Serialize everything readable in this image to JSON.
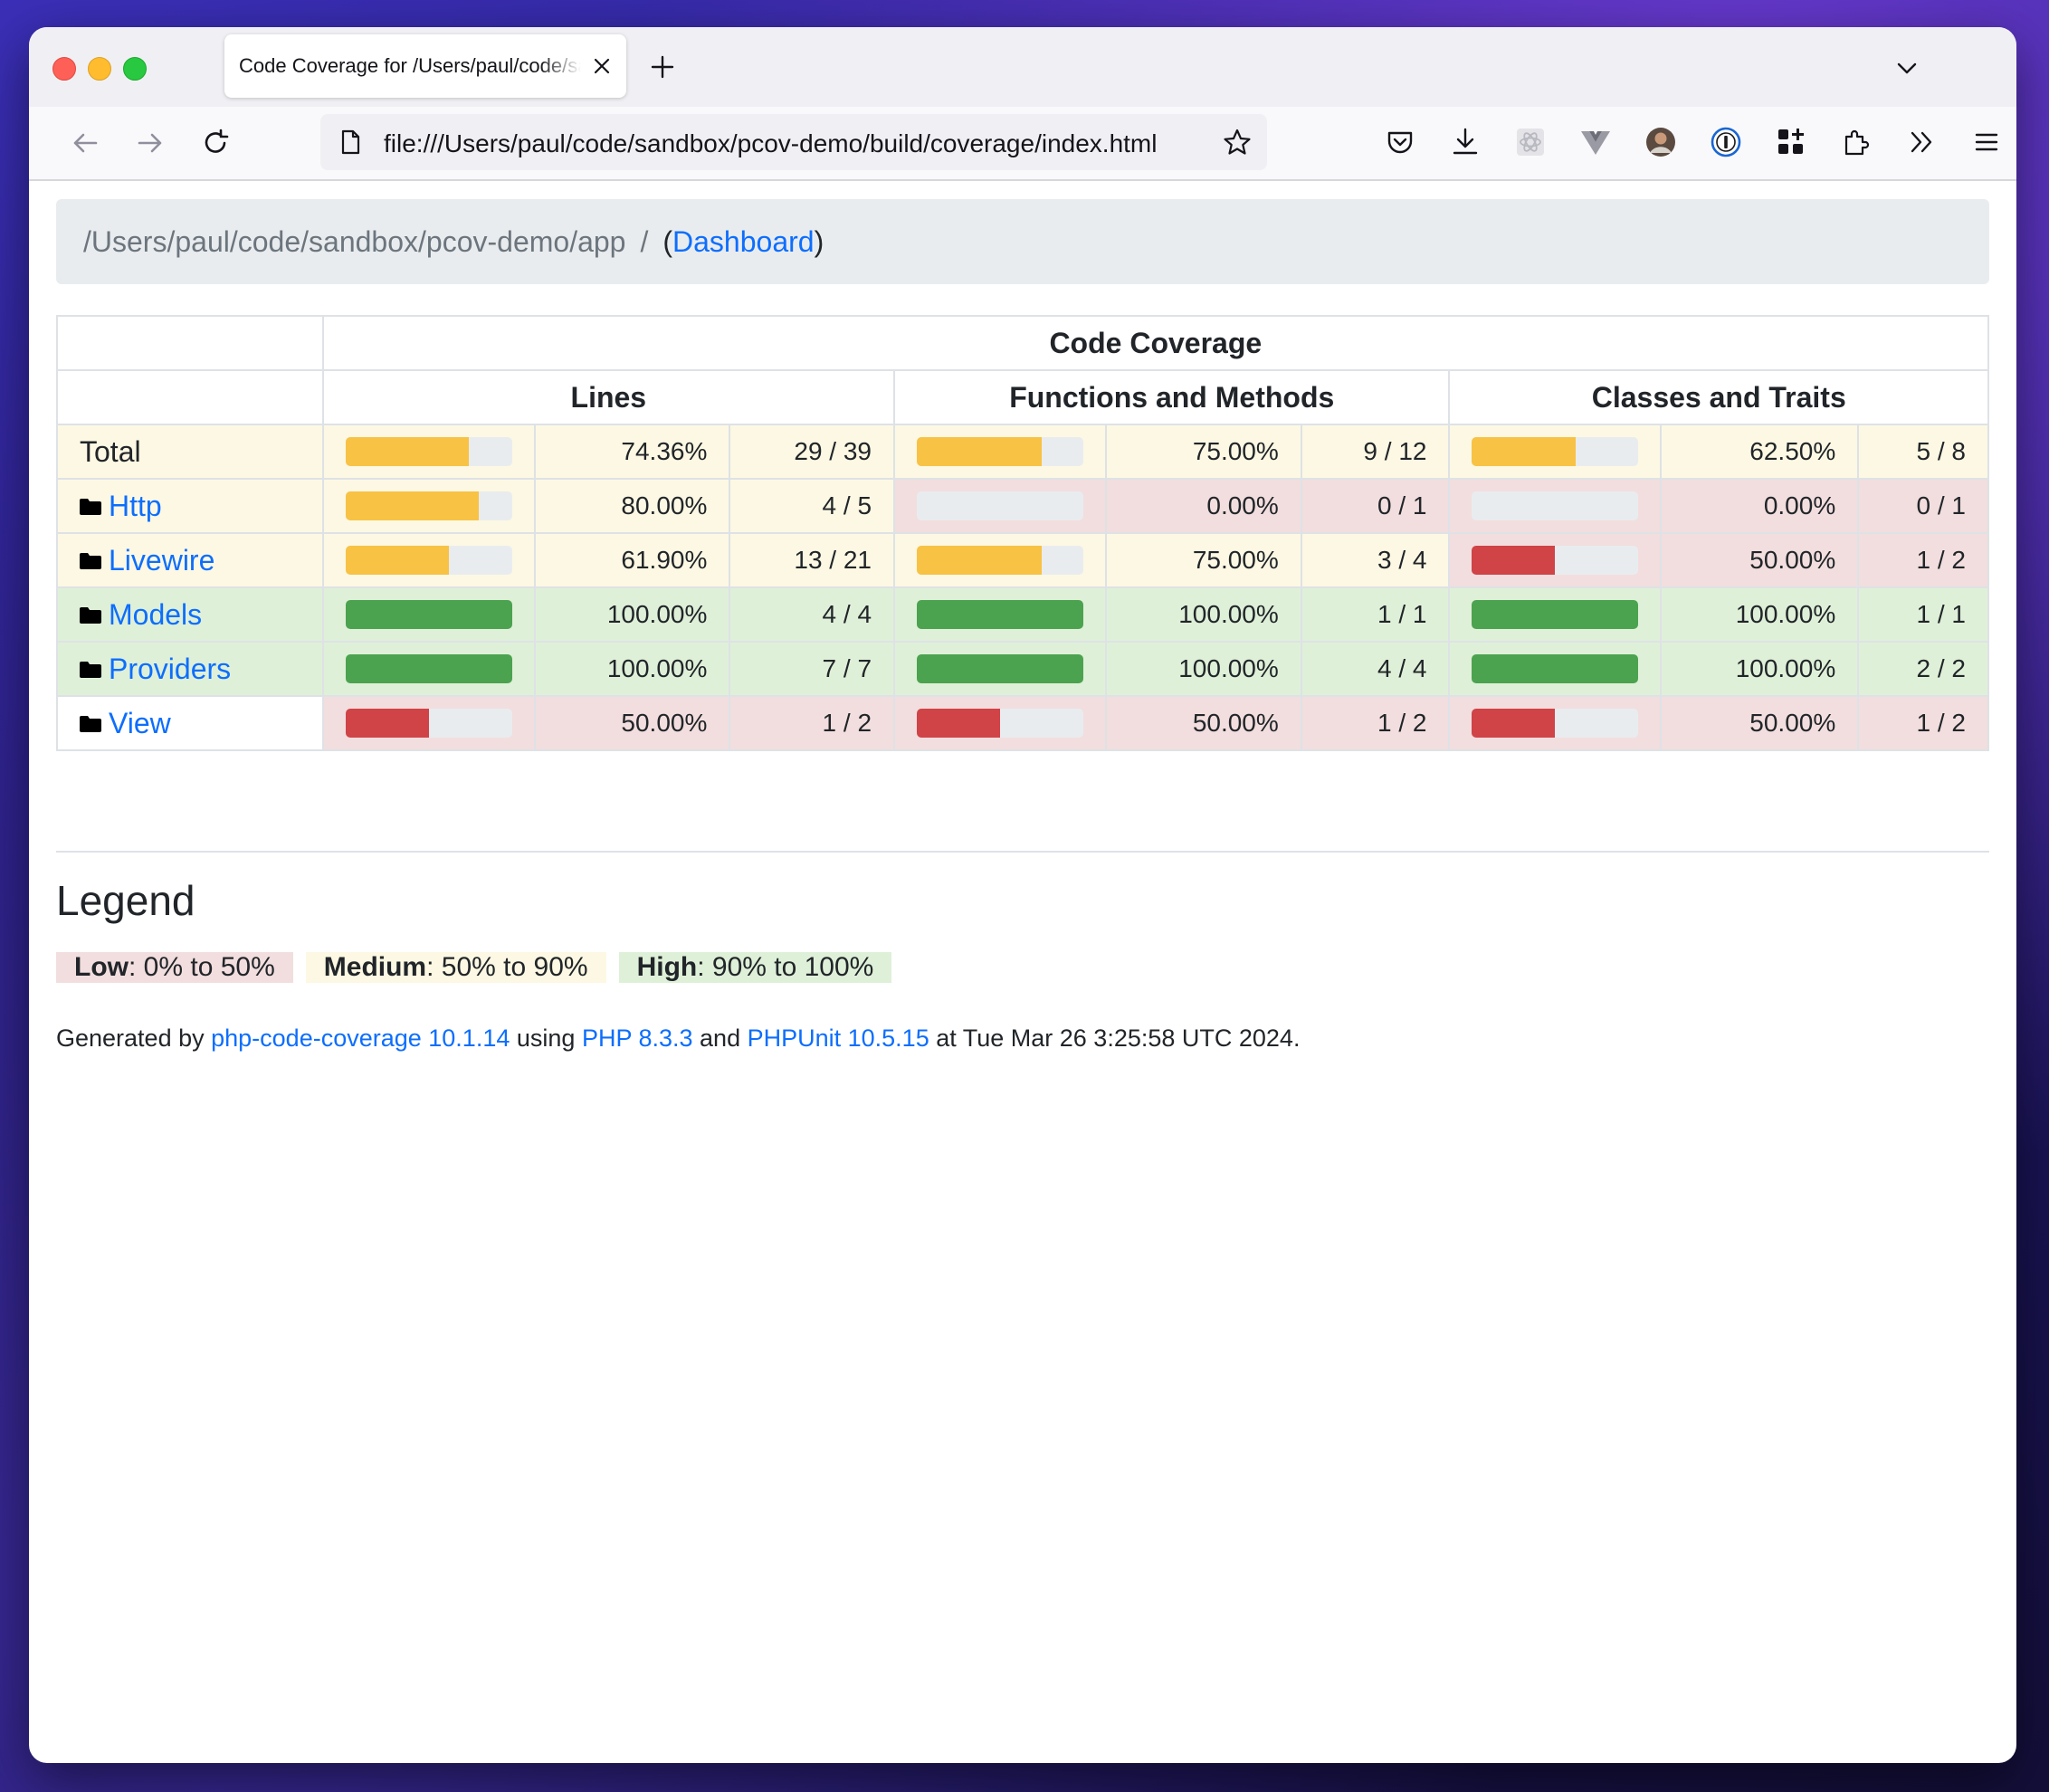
{
  "browser": {
    "tab_title": "Code Coverage for /Users/paul/code/sandbox/pcov-demo/app",
    "url": "file:///Users/paul/code/sandbox/pcov-demo/build/coverage/index.html"
  },
  "breadcrumb": {
    "path": "/Users/paul/code/sandbox/pcov-demo/app",
    "separator": "/",
    "open_paren": "(",
    "link": "Dashboard",
    "close_paren": ")"
  },
  "table": {
    "header": "Code Coverage",
    "groups": [
      "Lines",
      "Functions and Methods",
      "Classes and Traits"
    ],
    "rows": [
      {
        "name": "Total",
        "is_folder": false,
        "row_level": "warning",
        "lines": {
          "pct": "74.36%",
          "ratio": "29 / 39",
          "value": 74.36,
          "level": "warning"
        },
        "functions": {
          "pct": "75.00%",
          "ratio": "9 / 12",
          "value": 75.0,
          "level": "warning"
        },
        "classes": {
          "pct": "62.50%",
          "ratio": "5 / 8",
          "value": 62.5,
          "level": "warning"
        }
      },
      {
        "name": "Http",
        "is_folder": true,
        "row_level": "warning",
        "lines": {
          "pct": "80.00%",
          "ratio": "4 / 5",
          "value": 80.0,
          "level": "warning"
        },
        "functions": {
          "pct": "0.00%",
          "ratio": "0 / 1",
          "value": 0.0,
          "level": "danger"
        },
        "classes": {
          "pct": "0.00%",
          "ratio": "0 / 1",
          "value": 0.0,
          "level": "danger"
        }
      },
      {
        "name": "Livewire",
        "is_folder": true,
        "row_level": "warning",
        "lines": {
          "pct": "61.90%",
          "ratio": "13 / 21",
          "value": 61.9,
          "level": "warning"
        },
        "functions": {
          "pct": "75.00%",
          "ratio": "3 / 4",
          "value": 75.0,
          "level": "warning"
        },
        "classes": {
          "pct": "50.00%",
          "ratio": "1 / 2",
          "value": 50.0,
          "level": "danger"
        }
      },
      {
        "name": "Models",
        "is_folder": true,
        "row_level": "success",
        "lines": {
          "pct": "100.00%",
          "ratio": "4 / 4",
          "value": 100.0,
          "level": "success"
        },
        "functions": {
          "pct": "100.00%",
          "ratio": "1 / 1",
          "value": 100.0,
          "level": "success"
        },
        "classes": {
          "pct": "100.00%",
          "ratio": "1 / 1",
          "value": 100.0,
          "level": "success"
        }
      },
      {
        "name": "Providers",
        "is_folder": true,
        "row_level": "success",
        "lines": {
          "pct": "100.00%",
          "ratio": "7 / 7",
          "value": 100.0,
          "level": "success"
        },
        "functions": {
          "pct": "100.00%",
          "ratio": "4 / 4",
          "value": 100.0,
          "level": "success"
        },
        "classes": {
          "pct": "100.00%",
          "ratio": "2 / 2",
          "value": 100.0,
          "level": "success"
        }
      },
      {
        "name": "View",
        "is_folder": true,
        "row_level": "danger",
        "lines": {
          "pct": "50.00%",
          "ratio": "1 / 2",
          "value": 50.0,
          "level": "danger"
        },
        "functions": {
          "pct": "50.00%",
          "ratio": "1 / 2",
          "value": 50.0,
          "level": "danger"
        },
        "classes": {
          "pct": "50.00%",
          "ratio": "1 / 2",
          "value": 50.0,
          "level": "danger"
        }
      }
    ]
  },
  "legend": {
    "title": "Legend",
    "low_label": "Low",
    "low_range": ": 0% to 50%",
    "medium_label": "Medium",
    "medium_range": ": 50% to 90%",
    "high_label": "High",
    "high_range": ": 90% to 100%"
  },
  "footer": {
    "prefix": "Generated by ",
    "tool_link": "php-code-coverage 10.1.14",
    "using": " using ",
    "php_link": "PHP 8.3.3",
    "and": " and ",
    "phpunit_link": "PHPUnit 10.5.15",
    "suffix": " at Tue Mar 26 3:25:58 UTC 2024."
  },
  "colors": {
    "success": "#4ba34f",
    "warning": "#f8c244",
    "danger": "#d04347",
    "success_bg": "#dff0d8",
    "warning_bg": "#fcf8e3",
    "danger_bg": "#f2dede",
    "link": "#0d6efd"
  }
}
